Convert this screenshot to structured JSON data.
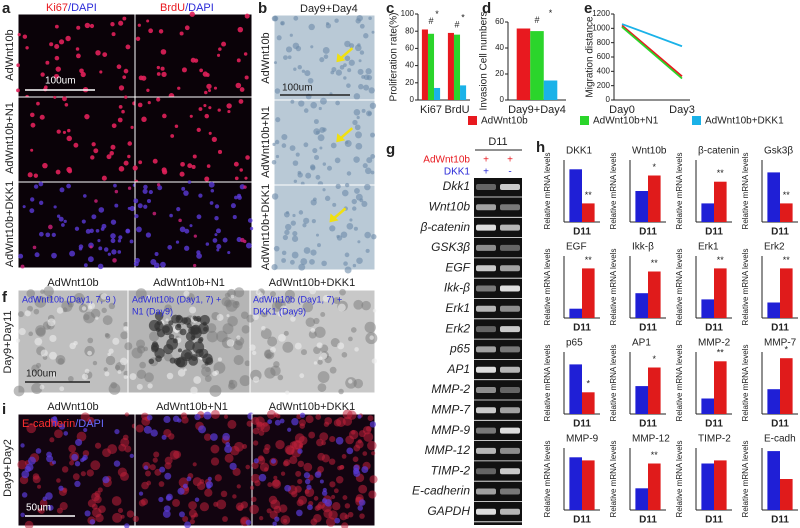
{
  "image_panels": {
    "a": {
      "label": "a",
      "col_headers": [
        [
          "Ki67",
          "/DAPI"
        ],
        [
          "BrdU",
          "/DAPI"
        ]
      ],
      "row_labels": [
        "AdWnt10b",
        "AdWnt10b+N1",
        "AdWnt10b+DKK1"
      ],
      "scale_bar": "100um"
    },
    "b": {
      "label": "b",
      "title": "Day9+Day4",
      "row_labels": [
        "AdWnt10b",
        "AdWnt10b+N1",
        "AdWnt10b+DKK1"
      ],
      "scale_bar": "100um"
    },
    "f": {
      "label": "f",
      "col_headers": [
        "AdWnt10b",
        "AdWnt10b+N1",
        "AdWnt10b+DKK1"
      ],
      "overlays": [
        [
          "AdWnt10b (Day1, 7, 9 )"
        ],
        [
          "AdWnt10b (Day1, 7) +",
          "N1 (Day9)"
        ],
        [
          "AdWnt10b (Day1, 7) +",
          "DKK1 (Day9)"
        ]
      ],
      "row_label": "Day9+Day11",
      "scale_bar": "100um"
    },
    "i": {
      "label": "i",
      "col_headers": [
        "AdWnt10b",
        "AdWnt10b+N1",
        "AdWnt10b+DKK1"
      ],
      "stain": [
        "E-cadherin",
        "/DAPI"
      ],
      "row_label": "Day9+Day2",
      "scale_bar": "50um"
    },
    "g": {
      "label": "g",
      "header": "D11",
      "conditions": [
        {
          "name": "AdWnt10b",
          "signs": [
            "+",
            "+"
          ]
        },
        {
          "name": "DKK1",
          "signs": [
            "+",
            "-"
          ]
        }
      ],
      "genes": [
        "Dkk1",
        "Wnt10b",
        "β-catenin",
        "GSK3β",
        "EGF",
        "Ikk-β",
        "Erk1",
        "Erk2",
        "p65",
        "AP1",
        "MMP-2",
        "MMP-7",
        "MMP-9",
        "MMP-12",
        "TIMP-2",
        "E-cadherin",
        "GAPDH"
      ]
    }
  },
  "chart_data": [
    {
      "type": "bar",
      "label": "c",
      "ylabel": "Proliferation rate(%)",
      "categories": [
        "Ki67",
        "BrdU"
      ],
      "series": [
        {
          "name": "AdWnt10b",
          "color": "#e8191f",
          "values": [
            82,
            78
          ]
        },
        {
          "name": "AdWnt10b+N1",
          "color": "#2bd52b",
          "values": [
            77,
            76
          ]
        },
        {
          "name": "AdWnt10b+DKK1",
          "color": "#1ab2e8",
          "values": [
            14,
            17
          ]
        }
      ],
      "ylim": [
        0,
        100
      ],
      "yticks": [
        0,
        20,
        40,
        60,
        80,
        100
      ],
      "annotations": [
        "#",
        "*",
        "#",
        "*"
      ]
    },
    {
      "type": "bar",
      "label": "d",
      "ylabel": "Invasion Cell numbers",
      "categories": [
        "Day9+Day4"
      ],
      "series": [
        {
          "color": "#e8191f",
          "values": [
            55
          ]
        },
        {
          "color": "#2bd52b",
          "values": [
            53
          ]
        },
        {
          "color": "#1ab2e8",
          "values": [
            15
          ]
        }
      ],
      "ylim": [
        0,
        60
      ],
      "yticks": [
        0,
        20,
        40,
        60
      ],
      "annotations": [
        "#",
        "*"
      ]
    },
    {
      "type": "line",
      "label": "e",
      "ylabel": "Migration distance",
      "categories": [
        "Day0",
        "Day3"
      ],
      "series": [
        {
          "color": "#e8191f",
          "values": [
            1040,
            330
          ]
        },
        {
          "color": "#2bd52b",
          "values": [
            1020,
            300
          ]
        },
        {
          "color": "#1ab2e8",
          "values": [
            1060,
            750
          ]
        }
      ],
      "ylim": [
        0,
        1200
      ],
      "yticks": [
        0,
        200,
        400,
        600,
        800,
        1000,
        1200
      ]
    },
    {
      "type": "bar",
      "label": "h",
      "title": "DKK1",
      "ylabel": "Relative mRNA levels",
      "categories": [
        "D11"
      ],
      "series": [
        {
          "color": "#1f1fd6",
          "values": [
            0.85
          ]
        },
        {
          "color": "#e01b1b",
          "values": [
            0.3
          ]
        }
      ],
      "ylim": [
        0,
        1
      ],
      "annotations": [
        "**"
      ]
    },
    {
      "type": "bar",
      "title": "Wnt10b",
      "ylabel": "Relative mRNA levels",
      "categories": [
        "D11"
      ],
      "series": [
        {
          "color": "#1f1fd6",
          "values": [
            0.5
          ]
        },
        {
          "color": "#e01b1b",
          "values": [
            0.75
          ]
        }
      ],
      "ylim": [
        0,
        1
      ],
      "annotations": [
        "*"
      ]
    },
    {
      "type": "bar",
      "title": "β-catenin",
      "ylabel": "Relative mRNA levels",
      "categories": [
        "D11"
      ],
      "series": [
        {
          "color": "#1f1fd6",
          "values": [
            0.3
          ]
        },
        {
          "color": "#e01b1b",
          "values": [
            0.65
          ]
        }
      ],
      "ylim": [
        0,
        1
      ],
      "annotations": [
        "**"
      ]
    },
    {
      "type": "bar",
      "title": "Gsk3β",
      "ylabel": "Relative mRNA levels",
      "categories": [
        "D11"
      ],
      "series": [
        {
          "color": "#1f1fd6",
          "values": [
            0.8
          ]
        },
        {
          "color": "#e01b1b",
          "values": [
            0.3
          ]
        }
      ],
      "ylim": [
        0,
        1
      ],
      "annotations": [
        "**"
      ]
    },
    {
      "type": "bar",
      "title": "EGF",
      "ylabel": "Relative mRNA levels",
      "categories": [
        "D11"
      ],
      "series": [
        {
          "color": "#1f1fd6",
          "values": [
            0.15
          ]
        },
        {
          "color": "#e01b1b",
          "values": [
            0.8
          ]
        }
      ],
      "ylim": [
        0,
        1
      ],
      "annotations": [
        "**"
      ]
    },
    {
      "type": "bar",
      "title": "Ikk-β",
      "ylabel": "Relative mRNA levels",
      "categories": [
        "D11"
      ],
      "series": [
        {
          "color": "#1f1fd6",
          "values": [
            0.4
          ]
        },
        {
          "color": "#e01b1b",
          "values": [
            0.75
          ]
        }
      ],
      "ylim": [
        0,
        1
      ],
      "annotations": [
        "**"
      ]
    },
    {
      "type": "bar",
      "title": "Erk1",
      "ylabel": "Relative mRNA levels",
      "categories": [
        "D11"
      ],
      "series": [
        {
          "color": "#1f1fd6",
          "values": [
            0.3
          ]
        },
        {
          "color": "#e01b1b",
          "values": [
            0.8
          ]
        }
      ],
      "ylim": [
        0,
        1
      ],
      "annotations": [
        "**"
      ]
    },
    {
      "type": "bar",
      "title": "Erk2",
      "ylabel": "Relative mRNA levels",
      "categories": [
        "D11"
      ],
      "series": [
        {
          "color": "#1f1fd6",
          "values": [
            0.25
          ]
        },
        {
          "color": "#e01b1b",
          "values": [
            0.8
          ]
        }
      ],
      "ylim": [
        0,
        1
      ],
      "annotations": [
        "**"
      ]
    },
    {
      "type": "bar",
      "title": "p65",
      "ylabel": "Relative mRNA levels",
      "categories": [
        "D11"
      ],
      "series": [
        {
          "color": "#1f1fd6",
          "values": [
            0.8
          ]
        },
        {
          "color": "#e01b1b",
          "values": [
            0.35
          ]
        }
      ],
      "ylim": [
        0,
        1
      ],
      "annotations": [
        "*"
      ]
    },
    {
      "type": "bar",
      "title": "AP1",
      "ylabel": "Relative mRNA levels",
      "categories": [
        "D11"
      ],
      "series": [
        {
          "color": "#1f1fd6",
          "values": [
            0.45
          ]
        },
        {
          "color": "#e01b1b",
          "values": [
            0.75
          ]
        }
      ],
      "ylim": [
        0,
        1
      ],
      "annotations": [
        "*"
      ]
    },
    {
      "type": "bar",
      "title": "MMP-2",
      "ylabel": "Relative mRNA levels",
      "categories": [
        "D11"
      ],
      "series": [
        {
          "color": "#1f1fd6",
          "values": [
            0.25
          ]
        },
        {
          "color": "#e01b1b",
          "values": [
            0.85
          ]
        }
      ],
      "ylim": [
        0,
        1
      ],
      "annotations": [
        "**"
      ]
    },
    {
      "type": "bar",
      "title": "MMP-7",
      "ylabel": "Relative mRNA levels",
      "categories": [
        "D11"
      ],
      "series": [
        {
          "color": "#1f1fd6",
          "values": [
            0.4
          ]
        },
        {
          "color": "#e01b1b",
          "values": [
            0.9
          ]
        }
      ],
      "ylim": [
        0,
        1
      ],
      "annotations": [
        "*"
      ]
    },
    {
      "type": "bar",
      "title": "MMP-9",
      "ylabel": "Relative mRNA levels",
      "categories": [
        "D11"
      ],
      "series": [
        {
          "color": "#1f1fd6",
          "values": [
            0.85
          ]
        },
        {
          "color": "#e01b1b",
          "values": [
            0.8
          ]
        }
      ],
      "ylim": [
        0,
        1
      ]
    },
    {
      "type": "bar",
      "title": "MMP-12",
      "ylabel": "Relative mRNA levels",
      "categories": [
        "D11"
      ],
      "series": [
        {
          "color": "#1f1fd6",
          "values": [
            0.35
          ]
        },
        {
          "color": "#e01b1b",
          "values": [
            0.75
          ]
        }
      ],
      "ylim": [
        0,
        1
      ],
      "annotations": [
        "**"
      ]
    },
    {
      "type": "bar",
      "title": "TIMP-2",
      "ylabel": "Relative mRNA levels",
      "categories": [
        "D11"
      ],
      "series": [
        {
          "color": "#1f1fd6",
          "values": [
            0.75
          ]
        },
        {
          "color": "#e01b1b",
          "values": [
            0.8
          ]
        }
      ],
      "ylim": [
        0,
        1
      ]
    },
    {
      "type": "bar",
      "title": "E-cadh",
      "ylabel": "Relative mRNA levels",
      "categories": [
        "D11"
      ],
      "series": [
        {
          "color": "#1f1fd6",
          "values": [
            0.95
          ]
        },
        {
          "color": "#e01b1b",
          "values": [
            0.5
          ]
        }
      ],
      "ylim": [
        0,
        1
      ]
    }
  ]
}
